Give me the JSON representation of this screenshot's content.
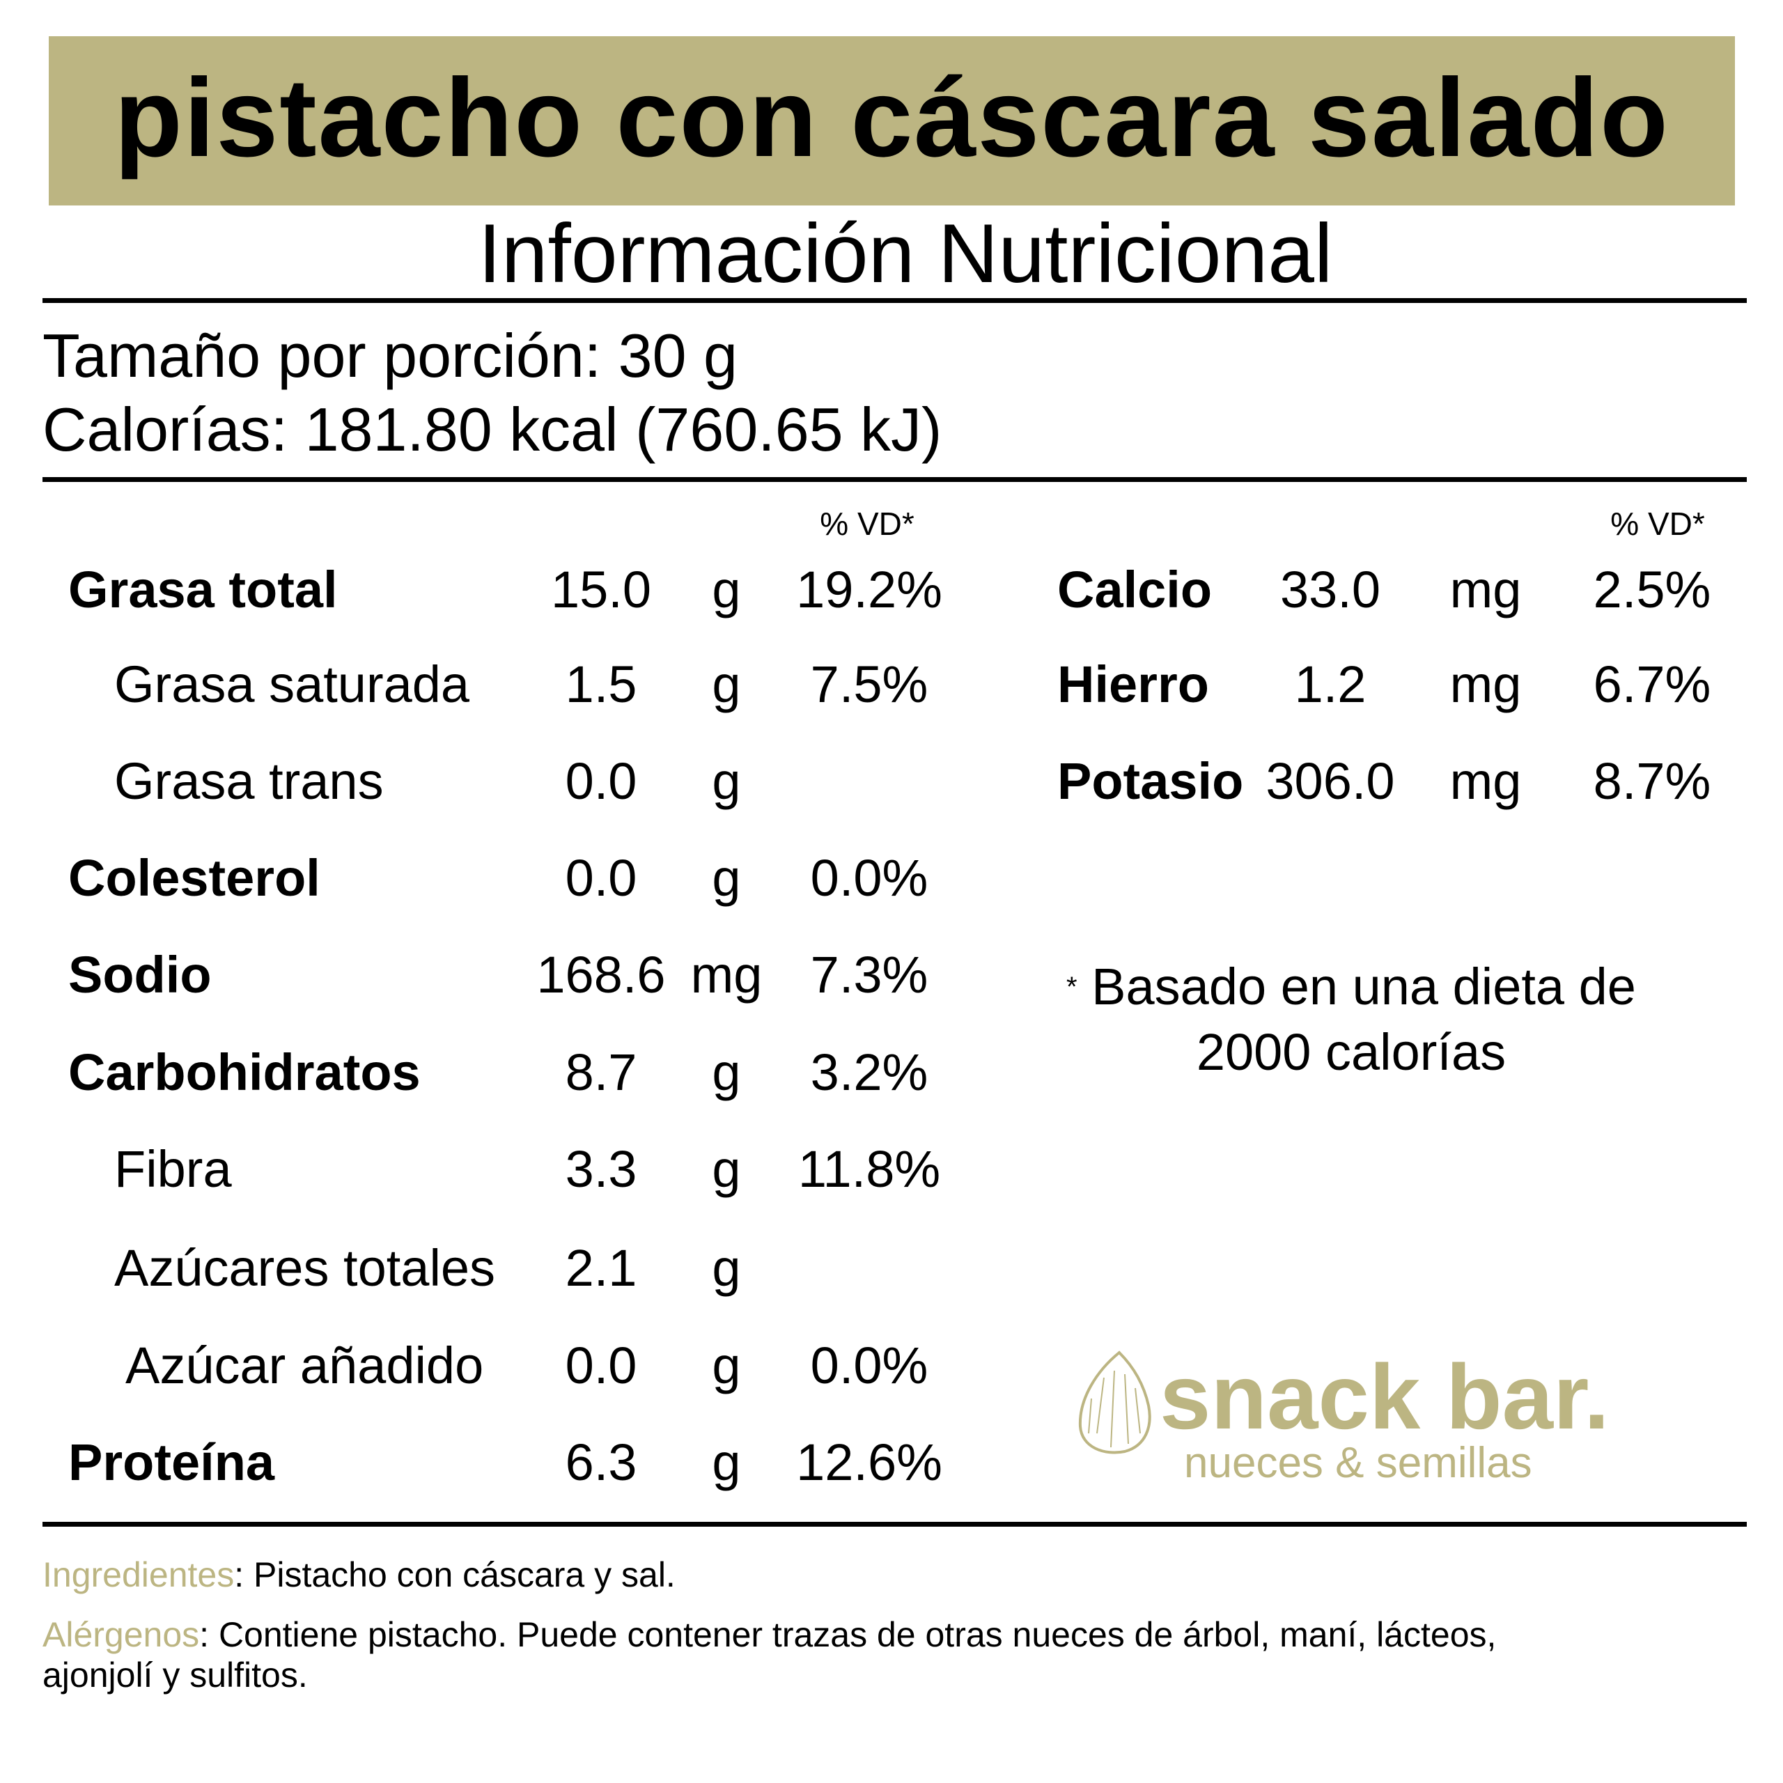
{
  "title": "pistacho con cáscara salado",
  "subtitle": "Información Nutricional",
  "serving": "Tamaño por porción: 30 g",
  "calories": "Calorías: 181.80 kcal (760.65 kJ)",
  "dv_header": "% VD*",
  "left_rows": [
    {
      "label": "Grasa total",
      "amount": "15.0",
      "unit": "g",
      "dv": "19.2%"
    },
    {
      "label": "Grasa saturada",
      "amount": "1.5",
      "unit": "g",
      "dv": "7.5%"
    },
    {
      "label": "Grasa trans",
      "amount": "0.0",
      "unit": "g",
      "dv": ""
    },
    {
      "label": "Colesterol",
      "amount": "0.0",
      "unit": "g",
      "dv": "0.0%"
    },
    {
      "label": "Sodio",
      "amount": "168.6",
      "unit": "mg",
      "dv": "7.3%"
    },
    {
      "label": "Carbohidratos",
      "amount": "8.7",
      "unit": "g",
      "dv": "3.2%"
    },
    {
      "label": "Fibra",
      "amount": "3.3",
      "unit": "g",
      "dv": "11.8%"
    },
    {
      "label": "Azúcares totales",
      "amount": "2.1",
      "unit": "g",
      "dv": ""
    },
    {
      "label": "Azúcar añadido",
      "amount": "0.0",
      "unit": "g",
      "dv": "0.0%"
    },
    {
      "label": "Proteína",
      "amount": "6.3",
      "unit": "g",
      "dv": "12.6%"
    }
  ],
  "right_rows": [
    {
      "label": "Calcio",
      "amount": "33.0",
      "unit": "mg",
      "dv": "2.5%"
    },
    {
      "label": "Hierro",
      "amount": "1.2",
      "unit": "mg",
      "dv": "6.7%"
    },
    {
      "label": "Potasio",
      "amount": "306.0",
      "unit": "mg",
      "dv": "8.7%"
    }
  ],
  "footnote_mark": "*",
  "footnote": "Basado en una dieta de 2000 calorías",
  "logo": {
    "name": "snack bar.",
    "tagline": "nueces & semillas"
  },
  "ingredients": {
    "label": "Ingredientes",
    "text": ": Pistacho con cáscara y sal."
  },
  "allergens": {
    "label": "Alérgenos",
    "text": ": Contiene pistacho. Puede contener trazas de otras nueces de árbol, maní, lácteos,",
    "text2": "ajonjolí y sulfitos."
  },
  "colors": {
    "accent": "#BCB582",
    "text": "#000000"
  }
}
